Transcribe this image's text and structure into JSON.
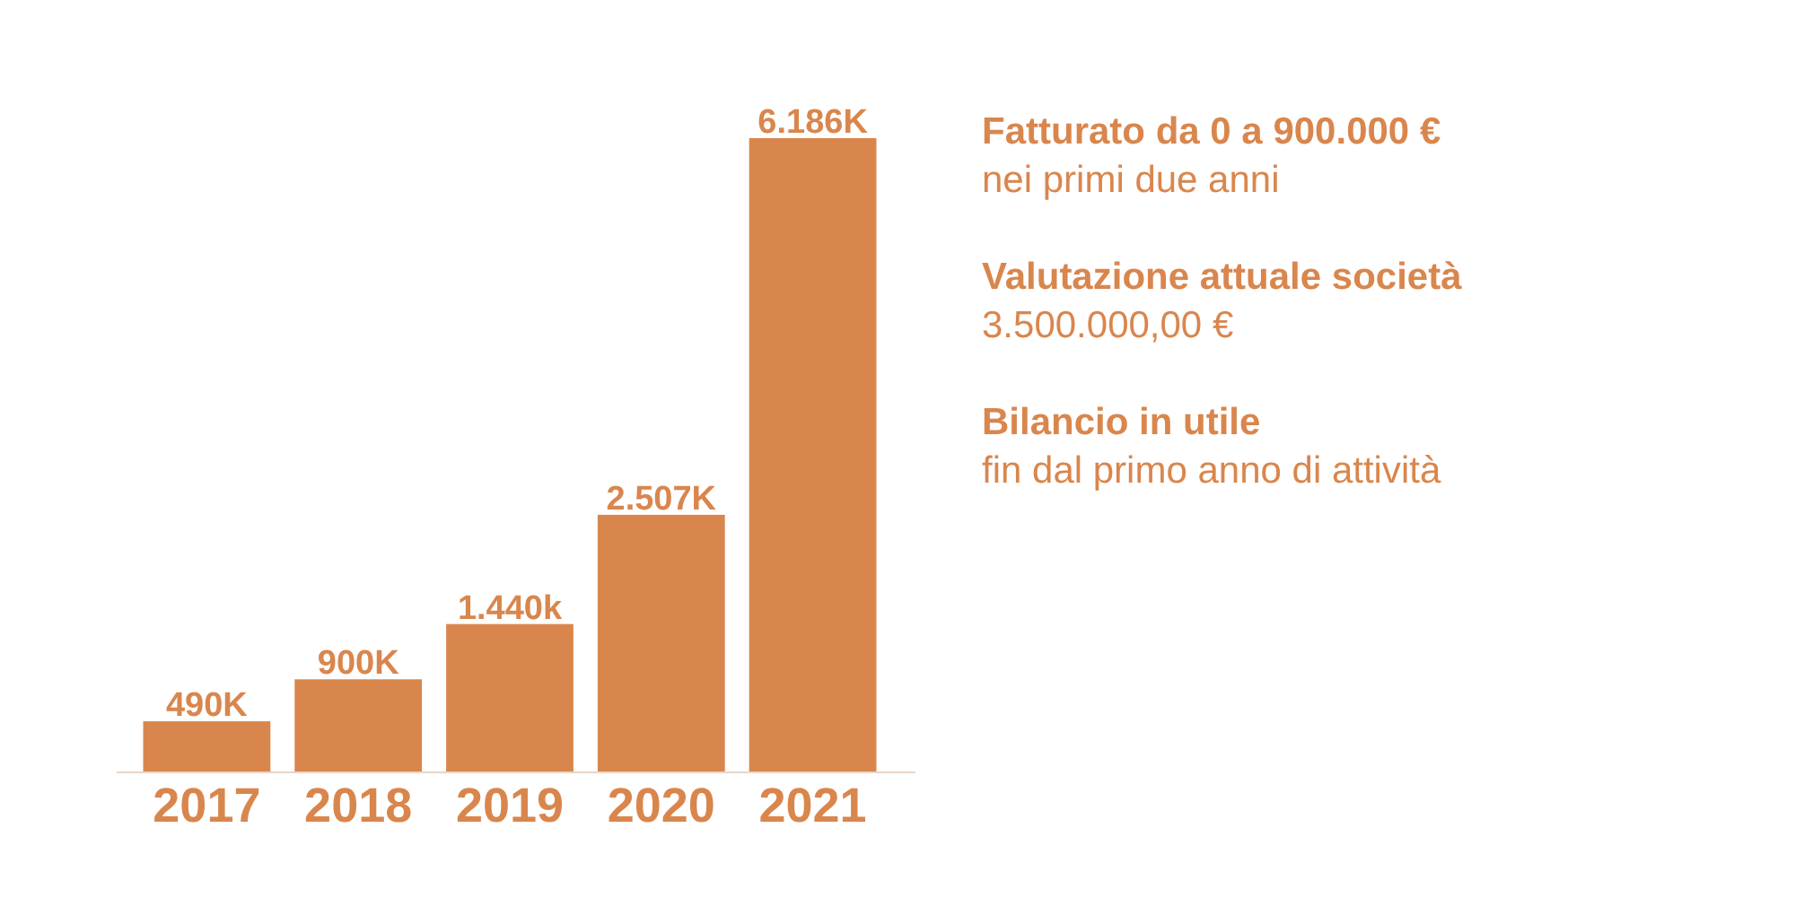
{
  "chart_data": {
    "type": "bar",
    "categories": [
      "2017",
      "2018",
      "2019",
      "2020",
      "2021"
    ],
    "values": [
      490,
      900,
      1440,
      2507,
      6186
    ],
    "value_labels": [
      "490K",
      "900K",
      "1.440k",
      "2.507K",
      "6.186K"
    ],
    "color": "#d9864d",
    "annotations": [
      "Fatturato da 0 a 900.000 €",
      "nei primi due anni",
      "Valutazione attuale società",
      "3.500.000,00 €",
      "Bilancio in utile",
      "fin dal primo anno di attività"
    ]
  }
}
